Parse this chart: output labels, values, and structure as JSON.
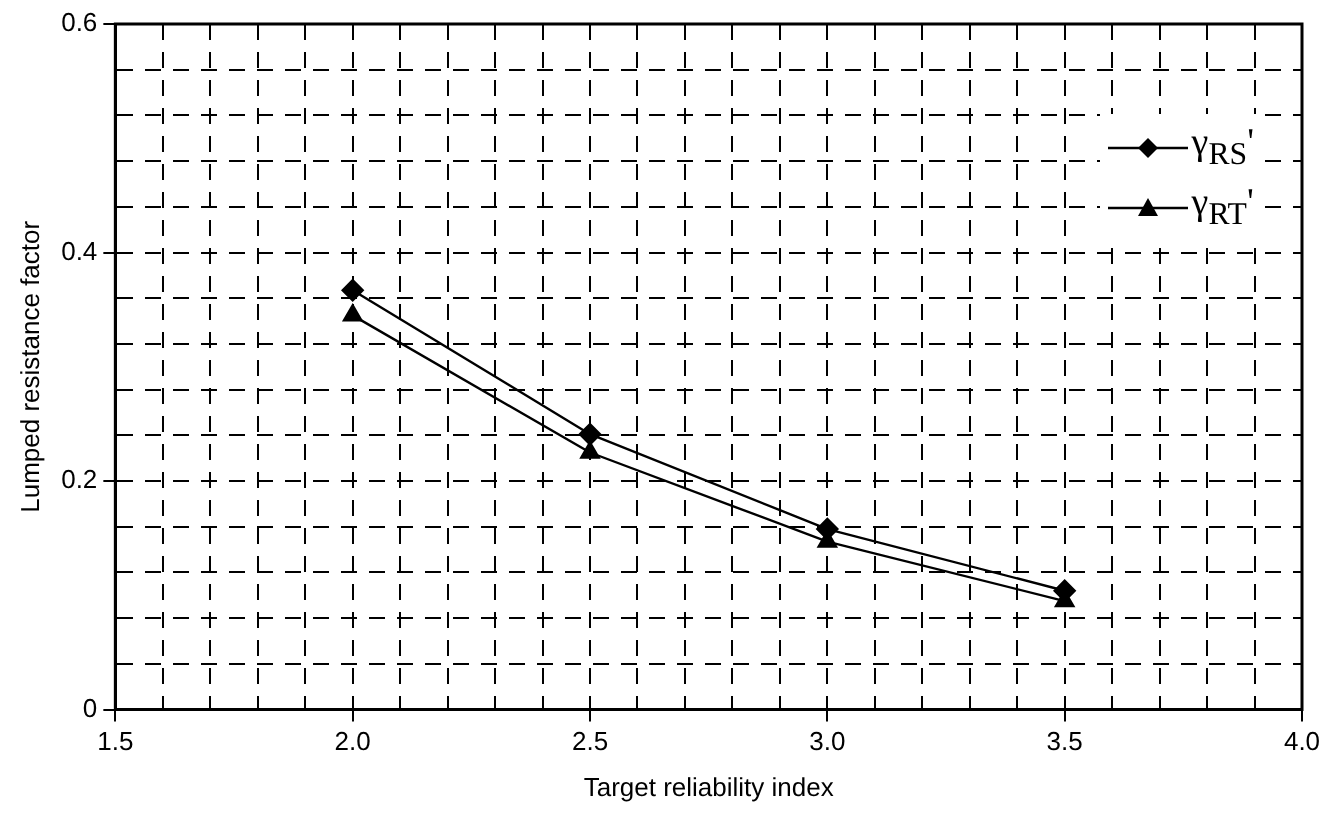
{
  "chart_data": {
    "type": "line",
    "xlabel": "Target reliability index",
    "ylabel": "Lumped resistance factor",
    "x": [
      2.0,
      2.5,
      3.0,
      3.5
    ],
    "series": [
      {
        "name": "γ$_{RS}$'",
        "color": "#000000",
        "marker": "diamond",
        "values": [
          0.367,
          0.241,
          0.158,
          0.104
        ]
      },
      {
        "name": "γ$_{RT}$'",
        "color": "#000000",
        "marker": "triangle",
        "values": [
          0.345,
          0.225,
          0.147,
          0.095
        ]
      }
    ],
    "xlim": [
      1.5,
      4.0
    ],
    "xticks": [
      {
        "value": 1.5,
        "label": "1.5"
      },
      {
        "value": 1.6,
        "label": null
      },
      {
        "value": 1.7,
        "label": null
      },
      {
        "value": 1.8,
        "label": null
      },
      {
        "value": 1.9,
        "label": null
      },
      {
        "value": 2.0,
        "label": "2.0"
      },
      {
        "value": 2.1,
        "label": null
      },
      {
        "value": 2.2,
        "label": null
      },
      {
        "value": 2.3,
        "label": null
      },
      {
        "value": 2.4,
        "label": null
      },
      {
        "value": 2.5,
        "label": "2.5"
      },
      {
        "value": 2.6,
        "label": null
      },
      {
        "value": 2.7,
        "label": null
      },
      {
        "value": 2.8,
        "label": null
      },
      {
        "value": 2.9,
        "label": null
      },
      {
        "value": 3.0,
        "label": "3.0"
      },
      {
        "value": 3.1,
        "label": null
      },
      {
        "value": 3.2,
        "label": null
      },
      {
        "value": 3.3,
        "label": null
      },
      {
        "value": 3.4,
        "label": null
      },
      {
        "value": 3.5,
        "label": "3.5"
      },
      {
        "value": 3.6,
        "label": null
      },
      {
        "value": 3.7,
        "label": null
      },
      {
        "value": 3.8,
        "label": null
      },
      {
        "value": 3.9,
        "label": null
      },
      {
        "value": 4.0,
        "label": "4.0"
      }
    ],
    "ylim": [
      0,
      0.6
    ],
    "yticks": [
      0,
      {
        "value": 0.04,
        "label": null
      },
      {
        "value": 0.08,
        "label": null
      },
      {
        "value": 0.12,
        "label": null
      },
      {
        "value": 0.16,
        "label": null
      },
      0.2,
      {
        "value": 0.24,
        "label": null
      },
      {
        "value": 0.28,
        "label": null
      },
      {
        "value": 0.32,
        "label": null
      },
      {
        "value": 0.36,
        "label": null
      },
      0.4,
      {
        "value": 0.44,
        "label": null
      },
      {
        "value": 0.48,
        "label": null
      },
      {
        "value": 0.52,
        "label": null
      },
      {
        "value": 0.56,
        "label": null
      },
      0.6
    ],
    "grid": true,
    "legend": "top right",
    "line_style": "solid"
  }
}
